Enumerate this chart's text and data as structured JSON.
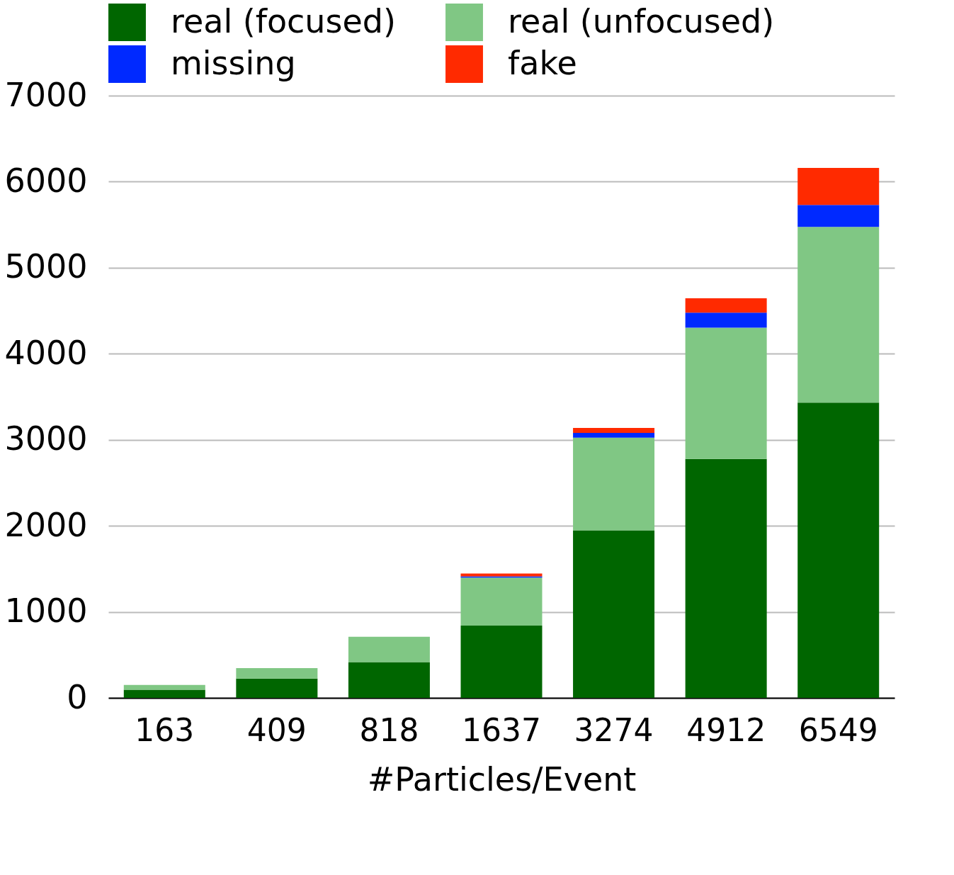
{
  "chart_data": {
    "type": "bar",
    "stacked": true,
    "xlabel": "#Particles/Event",
    "categories": [
      "163",
      "409",
      "818",
      "1637",
      "3274",
      "4912",
      "6549"
    ],
    "series": [
      {
        "name": "real (focused)",
        "color": "#006600",
        "values": [
          95,
          225,
          415,
          840,
          1947,
          2777,
          3432
        ]
      },
      {
        "name": "real (unfocused)",
        "color": "#80c784",
        "values": [
          55,
          120,
          295,
          557,
          1078,
          1525,
          2043
        ]
      },
      {
        "name": "missing",
        "color": "#0029ff",
        "values": [
          0,
          0,
          0,
          16,
          56,
          175,
          255
        ]
      },
      {
        "name": "fake",
        "color": "#ff2a00",
        "values": [
          0,
          0,
          0,
          32,
          56,
          168,
          431
        ]
      }
    ],
    "ylim": [
      0,
      7000
    ],
    "yticks": [
      0,
      1000,
      2000,
      3000,
      4000,
      5000,
      6000,
      7000
    ],
    "grid": "y",
    "legend": "top"
  }
}
